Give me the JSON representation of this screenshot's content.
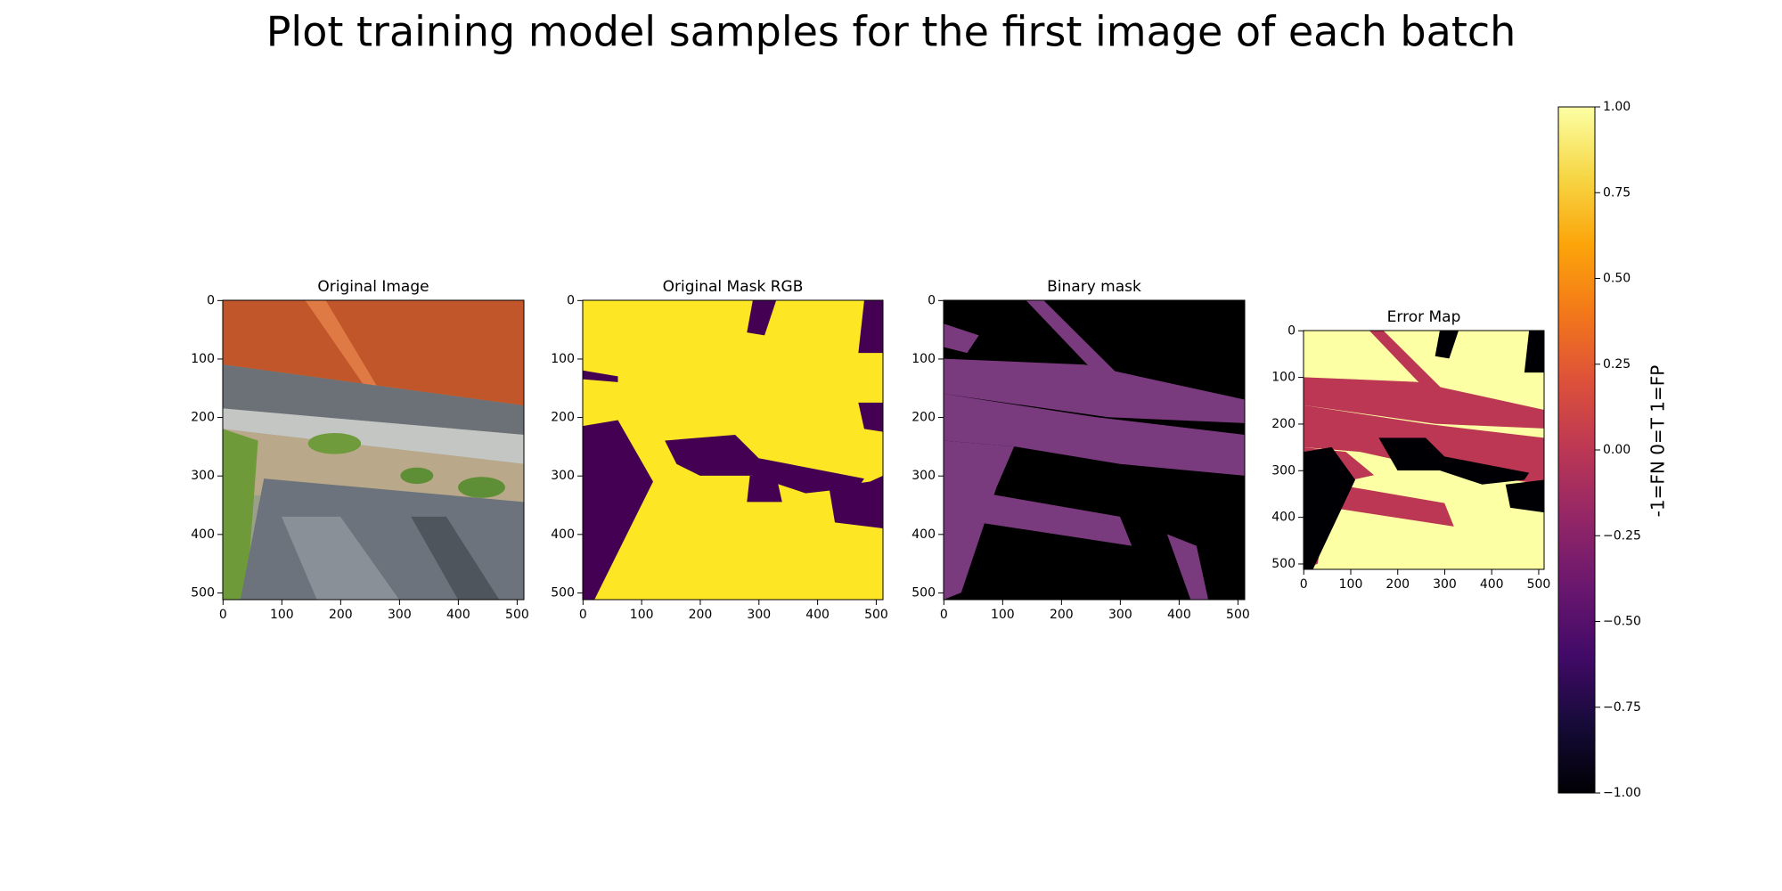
{
  "title": "Plot training model samples for the first image of each batch",
  "chart_data": [
    {
      "type": "image",
      "title": "Original Image",
      "xlim": [
        -0.5,
        511.5
      ],
      "ylim": [
        511.5,
        -0.5
      ],
      "xticks": [
        0,
        100,
        200,
        300,
        400,
        500
      ],
      "yticks": [
        0,
        100,
        200,
        300,
        400,
        500
      ]
    },
    {
      "type": "image",
      "title": "Original Mask RGB",
      "xlim": [
        -0.5,
        511.5
      ],
      "ylim": [
        511.5,
        -0.5
      ],
      "xticks": [
        0,
        100,
        200,
        300,
        400,
        500
      ],
      "yticks": [
        0,
        100,
        200,
        300,
        400,
        500
      ]
    },
    {
      "type": "image",
      "title": "Binary mask",
      "xlim": [
        -0.5,
        511.5
      ],
      "ylim": [
        511.5,
        -0.5
      ],
      "xticks": [
        0,
        100,
        200,
        300,
        400,
        500
      ],
      "yticks": [
        0,
        100,
        200,
        300,
        400,
        500
      ]
    },
    {
      "type": "image",
      "title": "Error Map",
      "xlim": [
        -0.5,
        511.5
      ],
      "ylim": [
        511.5,
        -0.5
      ],
      "xticks": [
        0,
        100,
        200,
        300,
        400,
        500
      ],
      "yticks": [
        0,
        100,
        200,
        300,
        400,
        500
      ]
    },
    {
      "type": "colorbar",
      "label": "-1=FN 0=T 1=FP",
      "colormap": "inferno",
      "ylim": [
        -1,
        1
      ],
      "yticks": [
        {
          "value": -1,
          "label": "−1.00"
        },
        {
          "value": -0.75,
          "label": "−0.75"
        },
        {
          "value": -0.5,
          "label": "−0.50"
        },
        {
          "value": -0.25,
          "label": "−0.25"
        },
        {
          "value": 0,
          "label": "0.00"
        },
        {
          "value": 0.25,
          "label": "0.25"
        },
        {
          "value": 0.5,
          "label": "0.50"
        },
        {
          "value": 0.75,
          "label": "0.75"
        },
        {
          "value": 1,
          "label": "1.00"
        }
      ]
    }
  ]
}
